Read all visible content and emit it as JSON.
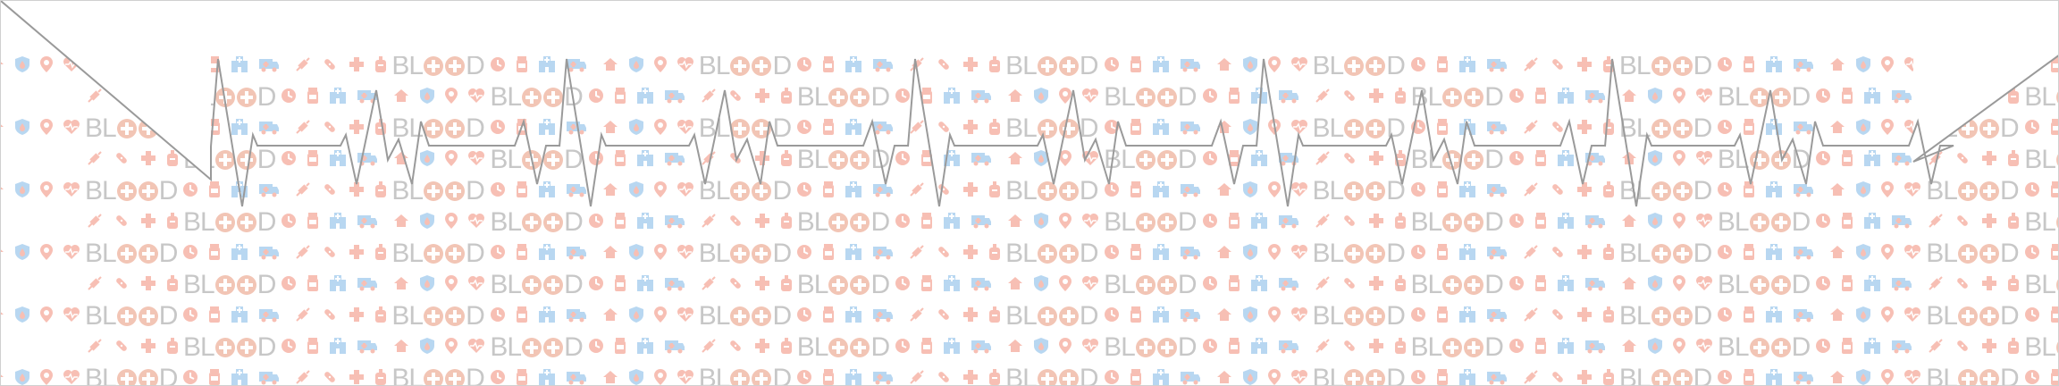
{
  "banner": {
    "word": "BLOOD",
    "icons": [
      "house-icon",
      "shield-drop-icon",
      "map-pin-icon",
      "heart-icon",
      "clock-icon",
      "pill-bottle-icon",
      "hospital-icon",
      "ambulance-icon",
      "syringe-icon",
      "bandage-icon",
      "medical-cross-icon",
      "blood-bag-icon"
    ],
    "colors": {
      "accent": "#f28c78",
      "secondary": "#7fb8e6",
      "text": "#9a9a9a",
      "line": "#9a9a9a",
      "background": "#ffffff"
    }
  }
}
